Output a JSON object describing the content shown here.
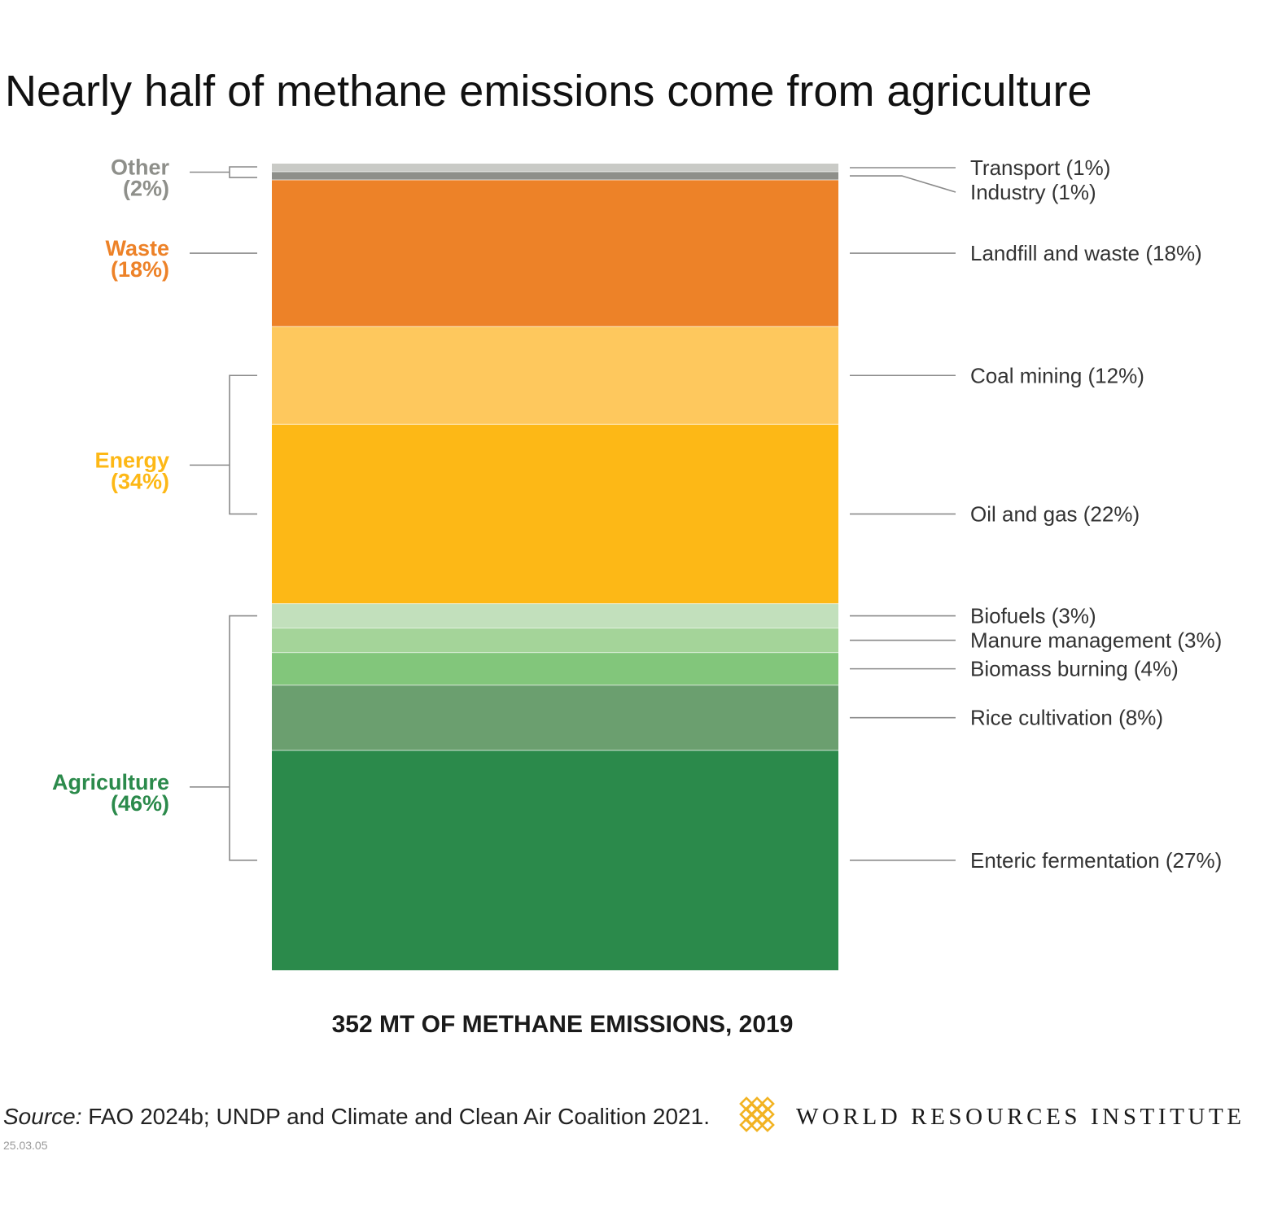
{
  "chart_data": {
    "type": "bar",
    "title": "Nearly half of methane emissions come from agriculture",
    "xlabel": "352 MT OF METHANE EMISSIONS, 2019",
    "ylabel": "",
    "ylim": [
      0,
      100
    ],
    "unit": "%",
    "stacked": true,
    "orientation": "vertical",
    "series": [
      {
        "name": "Transport (1%)",
        "value": 1,
        "group": "other",
        "color": "#c9cac6"
      },
      {
        "name": "Industry (1%)",
        "value": 1,
        "group": "other",
        "color": "#8e8f8a"
      },
      {
        "name": "Landfill and waste (18%)",
        "value": 18,
        "group": "waste",
        "color": "#ed8228"
      },
      {
        "name": "Coal mining (12%)",
        "value": 12,
        "group": "energy",
        "color": "#fec85d"
      },
      {
        "name": "Oil and gas (22%)",
        "value": 22,
        "group": "energy",
        "color": "#fdb816"
      },
      {
        "name": "Biofuels (3%)",
        "value": 3,
        "group": "agriculture",
        "color": "#c2e0bc"
      },
      {
        "name": "Manure management (3%)",
        "value": 3,
        "group": "agriculture",
        "color": "#a4d499"
      },
      {
        "name": "Biomass burning (4%)",
        "value": 4,
        "group": "agriculture",
        "color": "#82c67b"
      },
      {
        "name": "Rice cultivation (8%)",
        "value": 8,
        "group": "agriculture",
        "color": "#6b9f6f"
      },
      {
        "name": "Enteric fermentation (27%)",
        "value": 27,
        "group": "agriculture",
        "color": "#2b8a4b"
      }
    ],
    "groups": [
      {
        "id": "other",
        "label_line1": "Other",
        "label_line2": "(2%)",
        "value": 2,
        "color": "#8e8f8a"
      },
      {
        "id": "waste",
        "label_line1": "Waste",
        "label_line2": "(18%)",
        "value": 18,
        "color": "#ed8228"
      },
      {
        "id": "energy",
        "label_line1": "Energy",
        "label_line2": "(34%)",
        "value": 34,
        "color": "#fdb816"
      },
      {
        "id": "agriculture",
        "label_line1": "Agriculture",
        "label_line2": "(46%)",
        "value": 46,
        "color": "#2b8a4b"
      }
    ]
  },
  "footer": {
    "source_prefix": "Source:",
    "source_text": " FAO 2024b; UNDP and Climate and Clean Air Coalition 2021.",
    "date": "25.03.05",
    "organization": "WORLD RESOURCES INSTITUTE",
    "logo_icon": "wri-logo-icon",
    "logo_color": "#f2b322"
  }
}
